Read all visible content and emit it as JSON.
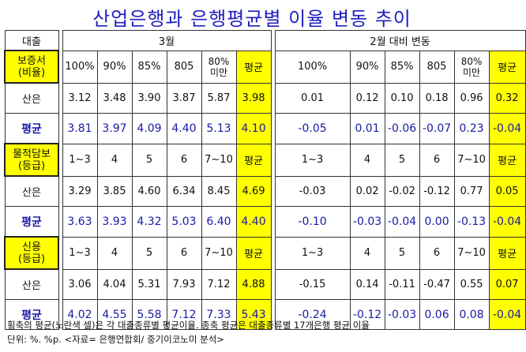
{
  "title": "산업은행과 은행평균별 이율 변동 추이",
  "header": {
    "corner": "대출",
    "group1": "3월",
    "group2": "2월 대비 변동"
  },
  "sections": [
    {
      "label_line1": "보증서",
      "label_line2": "(비율)",
      "cols1": [
        "100%",
        "90%",
        "85%",
        "805",
        "80%\n미만",
        "평균"
      ],
      "cols2": [
        "100%",
        "90%",
        "85%",
        "805",
        "80%\n미만",
        "평균"
      ],
      "rows": [
        {
          "label": "산은",
          "v1": [
            "3.12",
            "3.48",
            "3.90",
            "3.87",
            "5.87",
            "3.98"
          ],
          "v2": [
            "0.01",
            "0.12",
            "0.10",
            "0.18",
            "0.96",
            "0.32"
          ]
        },
        {
          "label": "평균",
          "v1": [
            "3.81",
            "3.97",
            "4.09",
            "4.40",
            "5.13",
            "4.10"
          ],
          "v2": [
            "-0.05",
            "0.01",
            "-0.06",
            "-0.07",
            "0.23",
            "-0.04"
          ]
        }
      ]
    },
    {
      "label_line1": "물적담보",
      "label_line2": "(등급)",
      "cols1": [
        "1~3",
        "4",
        "5",
        "6",
        "7~10",
        "평균"
      ],
      "cols2": [
        "1~3",
        "4",
        "5",
        "6",
        "7~10",
        "평균"
      ],
      "rows": [
        {
          "label": "산은",
          "v1": [
            "3.29",
            "3.85",
            "4.60",
            "6.34",
            "8.45",
            "4.69"
          ],
          "v2": [
            "-0.03",
            "0.02",
            "-0.02",
            "-0.12",
            "0.77",
            "0.05"
          ]
        },
        {
          "label": "평균",
          "v1": [
            "3.63",
            "3.93",
            "4.32",
            "5.03",
            "6.40",
            "4.40"
          ],
          "v2": [
            "-0.10",
            "-0.03",
            "-0.04",
            "0.00",
            "-0.13",
            "-0.04"
          ]
        }
      ]
    },
    {
      "label_line1": "신용",
      "label_line2": "(등급)",
      "cols1": [
        "1~3",
        "4",
        "5",
        "6",
        "7~10",
        "평균"
      ],
      "cols2": [
        "1~3",
        "4",
        "5",
        "6",
        "7~10",
        "평균"
      ],
      "rows": [
        {
          "label": "산은",
          "v1": [
            "3.06",
            "4.04",
            "5.31",
            "7.93",
            "7.12",
            "4.88"
          ],
          "v2": [
            "-0.15",
            "0.14",
            "-0.11",
            "-0.47",
            "0.55",
            "0.07"
          ]
        },
        {
          "label": "평균",
          "v1": [
            "4.02",
            "4.55",
            "5.58",
            "7.12",
            "7.33",
            "5.43"
          ],
          "v2": [
            "-0.24",
            "-0.12",
            "-0.03",
            "0.06",
            "0.08",
            "-0.04"
          ]
        }
      ]
    }
  ],
  "notes": [
    "횡축의 평균(노란색 셀)은 각 대출종류별 평균이율. 종축 평균은 대출종류별 17개은행 평균 이율",
    "단위: %. %p. <자료= 은행연합회/ 중기이코노미 분석>"
  ]
}
